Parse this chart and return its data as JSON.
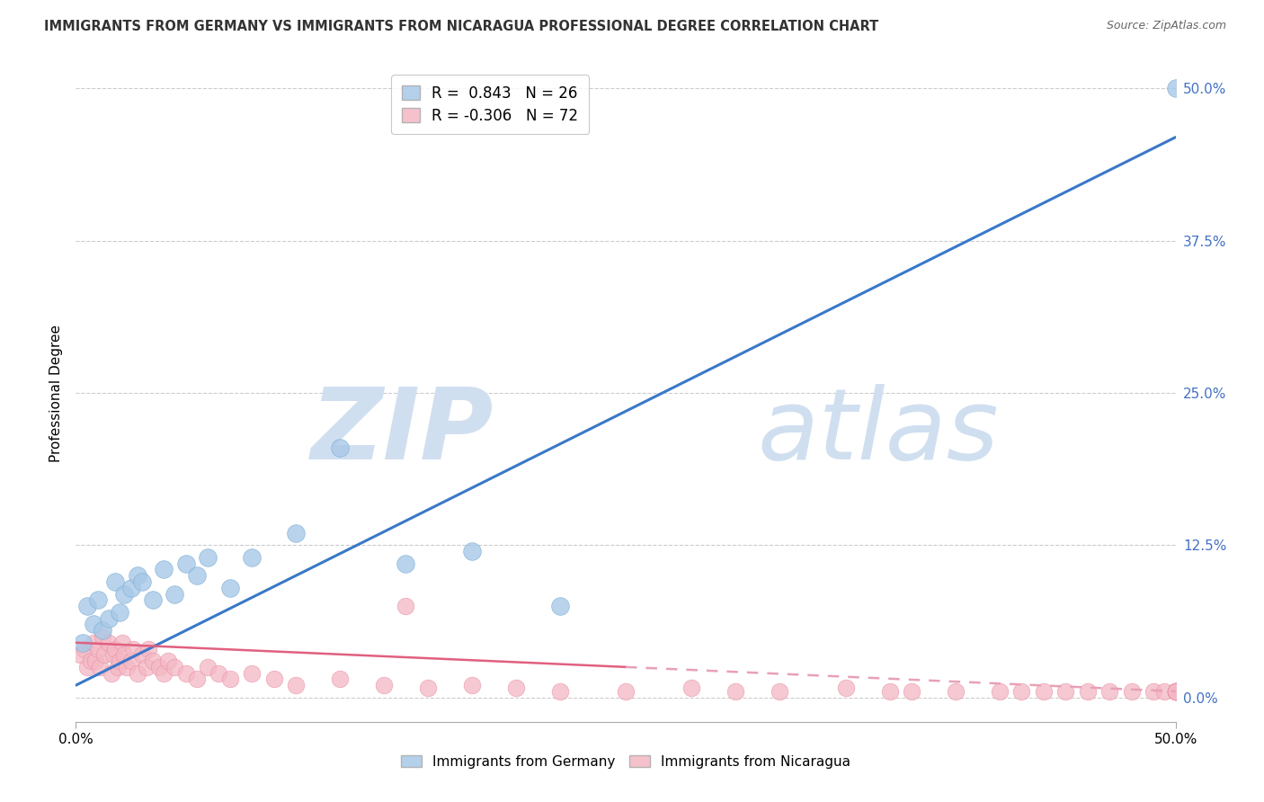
{
  "title": "IMMIGRANTS FROM GERMANY VS IMMIGRANTS FROM NICARAGUA PROFESSIONAL DEGREE CORRELATION CHART",
  "source": "Source: ZipAtlas.com",
  "ylabel": "Professional Degree",
  "ytick_values": [
    0.0,
    12.5,
    25.0,
    37.5,
    50.0
  ],
  "xlim": [
    0.0,
    50.0
  ],
  "ylim": [
    -2.0,
    52.0
  ],
  "germany_R": 0.843,
  "germany_N": 26,
  "nicaragua_R": -0.306,
  "nicaragua_N": 72,
  "germany_color": "#a8c8e8",
  "germany_edge_color": "#7aadd4",
  "nicaragua_color": "#f4b8c4",
  "nicaragua_edge_color": "#e890a8",
  "germany_line_color": "#3a78c8",
  "nicaragua_line_color": "#e06080",
  "nicaragua_line_dash_color": "#e8a0b8",
  "watermark_zip": "ZIP",
  "watermark_atlas": "atlas",
  "watermark_color": "#d0dff0",
  "germany_scatter_x": [
    0.3,
    0.5,
    0.8,
    1.0,
    1.2,
    1.5,
    1.8,
    2.0,
    2.2,
    2.5,
    2.8,
    3.0,
    3.5,
    4.0,
    4.5,
    5.0,
    5.5,
    6.0,
    7.0,
    8.0,
    10.0,
    12.0,
    15.0,
    18.0,
    22.0,
    50.0
  ],
  "germany_scatter_y": [
    4.5,
    7.5,
    6.0,
    8.0,
    5.5,
    6.5,
    9.5,
    7.0,
    8.5,
    9.0,
    10.0,
    9.5,
    8.0,
    10.5,
    8.5,
    11.0,
    10.0,
    11.5,
    9.0,
    11.5,
    13.5,
    20.5,
    11.0,
    12.0,
    7.5,
    50.0
  ],
  "nicaragua_scatter_x": [
    0.2,
    0.4,
    0.5,
    0.7,
    0.8,
    0.9,
    1.0,
    1.1,
    1.2,
    1.3,
    1.5,
    1.6,
    1.7,
    1.8,
    1.9,
    2.0,
    2.1,
    2.2,
    2.3,
    2.5,
    2.6,
    2.8,
    3.0,
    3.2,
    3.3,
    3.5,
    3.8,
    4.0,
    4.2,
    4.5,
    5.0,
    5.5,
    6.0,
    6.5,
    7.0,
    8.0,
    9.0,
    10.0,
    12.0,
    14.0,
    15.0,
    16.0,
    18.0,
    20.0,
    22.0,
    25.0,
    28.0,
    30.0,
    32.0,
    35.0,
    37.0,
    38.0,
    40.0,
    42.0,
    43.0,
    44.0,
    45.0,
    46.0,
    47.0,
    48.0,
    49.0,
    49.5,
    50.0,
    50.0,
    50.0,
    50.0,
    50.0,
    50.0,
    50.0,
    50.0,
    50.0,
    50.0
  ],
  "nicaragua_scatter_y": [
    3.5,
    4.0,
    2.5,
    3.0,
    4.5,
    3.0,
    4.0,
    2.5,
    5.0,
    3.5,
    4.5,
    2.0,
    3.5,
    4.0,
    2.5,
    3.0,
    4.5,
    3.5,
    2.5,
    3.0,
    4.0,
    2.0,
    3.5,
    2.5,
    4.0,
    3.0,
    2.5,
    2.0,
    3.0,
    2.5,
    2.0,
    1.5,
    2.5,
    2.0,
    1.5,
    2.0,
    1.5,
    1.0,
    1.5,
    1.0,
    7.5,
    0.8,
    1.0,
    0.8,
    0.5,
    0.5,
    0.8,
    0.5,
    0.5,
    0.8,
    0.5,
    0.5,
    0.5,
    0.5,
    0.5,
    0.5,
    0.5,
    0.5,
    0.5,
    0.5,
    0.5,
    0.5,
    0.5,
    0.5,
    0.5,
    0.5,
    0.5,
    0.5,
    0.5,
    0.5,
    0.5,
    0.5
  ],
  "germany_line_x0": 0.0,
  "germany_line_y0": 1.0,
  "germany_line_x1": 50.0,
  "germany_line_y1": 46.0,
  "nicaragua_line_x0": 0.0,
  "nicaragua_line_y0": 4.5,
  "nicaragua_line_x1": 50.0,
  "nicaragua_line_y1": 0.5,
  "nicaragua_dash_x0": 25.0,
  "nicaragua_dash_x1": 50.0,
  "background_color": "#ffffff",
  "grid_color": "#cccccc"
}
